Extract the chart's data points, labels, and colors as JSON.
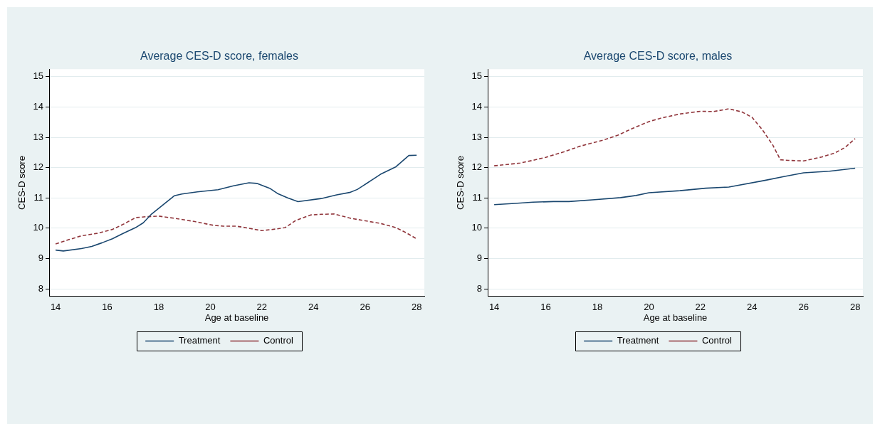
{
  "chart_data": [
    {
      "type": "line",
      "title": "Average CES-D score, females",
      "xlabel": "Age at baseline",
      "ylabel": "CES-D score",
      "xlim": [
        13.75,
        28.3
      ],
      "xticks": [
        14,
        16,
        18,
        20,
        22,
        24,
        26,
        28
      ],
      "ylim": [
        7.75,
        15.25
      ],
      "yticks": [
        8,
        9,
        10,
        11,
        12,
        13,
        14,
        15
      ],
      "grid": "y",
      "legend": "bottom",
      "marker": "none",
      "series": [
        {
          "name": "Treatment",
          "color": "#1a476f",
          "line_style": "solid",
          "x": [
            14,
            14.3,
            15,
            15.4,
            15.8,
            16.2,
            16.6,
            17.1,
            17.4,
            17.7,
            18.6,
            18.9,
            19.5,
            20.3,
            20.9,
            21.5,
            21.8,
            22.3,
            22.6,
            23.0,
            23.4,
            24.3,
            24.9,
            25.4,
            25.7,
            26.1,
            26.6,
            27.2,
            27.7,
            28
          ],
          "values": [
            9.28,
            9.25,
            9.33,
            9.4,
            9.52,
            9.65,
            9.82,
            10.02,
            10.18,
            10.45,
            11.07,
            11.13,
            11.2,
            11.27,
            11.4,
            11.5,
            11.48,
            11.32,
            11.15,
            11.0,
            10.88,
            10.98,
            11.1,
            11.18,
            11.28,
            11.5,
            11.78,
            12.03,
            12.4,
            12.41
          ]
        },
        {
          "name": "Control",
          "color": "#90353b",
          "line_style": "dashed",
          "x": [
            14,
            14.5,
            15,
            15.6,
            16.2,
            16.6,
            17.1,
            17.5,
            18,
            18.6,
            19.4,
            20.1,
            20.5,
            21,
            21.5,
            22.0,
            22.6,
            22.9,
            23.3,
            23.9,
            24.3,
            24.8,
            25.4,
            25.7,
            26.6,
            27.2,
            27.6,
            28
          ],
          "values": [
            9.48,
            9.62,
            9.75,
            9.83,
            9.96,
            10.12,
            10.35,
            10.38,
            10.4,
            10.33,
            10.22,
            10.1,
            10.07,
            10.07,
            10.0,
            9.92,
            9.98,
            10.02,
            10.25,
            10.44,
            10.46,
            10.47,
            10.34,
            10.29,
            10.16,
            10.02,
            9.85,
            9.65
          ]
        }
      ]
    },
    {
      "type": "line",
      "title": "Average CES-D score, males",
      "xlabel": "Age at baseline",
      "ylabel": "CES-D score",
      "xlim": [
        13.75,
        28.3
      ],
      "xticks": [
        14,
        16,
        18,
        20,
        22,
        24,
        26,
        28
      ],
      "ylim": [
        7.75,
        15.25
      ],
      "yticks": [
        8,
        9,
        10,
        11,
        12,
        13,
        14,
        15
      ],
      "grid": "y",
      "legend": "bottom",
      "marker": "none",
      "series": [
        {
          "name": "Treatment",
          "color": "#1a476f",
          "line_style": "solid",
          "x": [
            14,
            14.8,
            15.5,
            16.3,
            16.9,
            18,
            18.9,
            19.5,
            20,
            21.2,
            22.2,
            23.1,
            24.5,
            25.2,
            26,
            27,
            28
          ],
          "values": [
            10.78,
            10.82,
            10.86,
            10.88,
            10.88,
            10.95,
            11.01,
            11.08,
            11.17,
            11.24,
            11.32,
            11.36,
            11.58,
            11.7,
            11.83,
            11.88,
            11.98
          ]
        },
        {
          "name": "Control",
          "color": "#90353b",
          "line_style": "dashed",
          "x": [
            14,
            15,
            15.5,
            16.0,
            16.7,
            17.3,
            18.2,
            18.8,
            19.3,
            20,
            20.5,
            21.2,
            22,
            22.5,
            23.1,
            23.6,
            24.0,
            24.4,
            24.8,
            25.1,
            25.4,
            26,
            26.7,
            27.2,
            27.6,
            28
          ],
          "values": [
            12.06,
            12.15,
            12.24,
            12.34,
            12.52,
            12.7,
            12.9,
            13.07,
            13.27,
            13.52,
            13.64,
            13.77,
            13.86,
            13.85,
            13.94,
            13.84,
            13.66,
            13.25,
            12.75,
            12.26,
            12.24,
            12.22,
            12.35,
            12.48,
            12.66,
            12.96
          ]
        }
      ]
    }
  ]
}
